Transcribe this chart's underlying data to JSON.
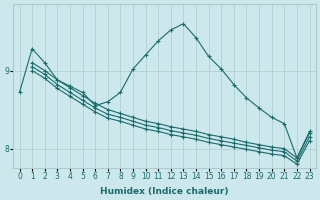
{
  "xlabel": "Humidex (Indice chaleur)",
  "bg_color": "#cce8ec",
  "grid_color": "#aacccc",
  "line_color": "#1a6b6b",
  "xlim": [
    -0.5,
    23.5
  ],
  "ylim": [
    7.75,
    9.85
  ],
  "yticks": [
    8,
    9
  ],
  "xticks": [
    0,
    1,
    2,
    3,
    4,
    5,
    6,
    7,
    8,
    9,
    10,
    11,
    12,
    13,
    14,
    15,
    16,
    17,
    18,
    19,
    20,
    21,
    22,
    23
  ],
  "lines": [
    {
      "x": [
        0,
        1,
        2,
        3,
        4,
        5,
        6,
        7,
        8,
        9,
        10,
        11,
        12,
        13,
        14,
        15,
        16,
        17,
        18,
        19,
        20,
        21,
        22,
        23
      ],
      "y": [
        8.72,
        9.28,
        9.1,
        8.88,
        8.8,
        8.72,
        8.55,
        8.6,
        8.72,
        9.02,
        9.2,
        9.38,
        9.52,
        9.6,
        9.42,
        9.18,
        9.02,
        8.82,
        8.65,
        8.52,
        8.4,
        8.32,
        7.88,
        8.22
      ]
    },
    {
      "x": [
        1,
        2,
        3,
        4,
        5,
        6,
        7,
        8,
        9,
        10,
        11,
        12,
        13,
        14,
        15,
        16,
        17,
        18,
        19,
        20,
        21,
        22,
        23
      ],
      "y": [
        9.1,
        9.0,
        8.88,
        8.78,
        8.68,
        8.58,
        8.5,
        8.45,
        8.4,
        8.35,
        8.32,
        8.28,
        8.25,
        8.22,
        8.18,
        8.15,
        8.12,
        8.08,
        8.05,
        8.02,
        8.0,
        7.88,
        8.2
      ]
    },
    {
      "x": [
        1,
        2,
        3,
        4,
        5,
        6,
        7,
        8,
        9,
        10,
        11,
        12,
        13,
        14,
        15,
        16,
        17,
        18,
        19,
        20,
        21,
        22,
        23
      ],
      "y": [
        9.05,
        8.95,
        8.82,
        8.72,
        8.62,
        8.52,
        8.44,
        8.4,
        8.35,
        8.3,
        8.27,
        8.23,
        8.2,
        8.17,
        8.13,
        8.1,
        8.07,
        8.04,
        8.01,
        7.98,
        7.96,
        7.84,
        8.15
      ]
    },
    {
      "x": [
        1,
        2,
        3,
        4,
        5,
        6,
        7,
        8,
        9,
        10,
        11,
        12,
        13,
        14,
        15,
        16,
        17,
        18,
        19,
        20,
        21,
        22,
        23
      ],
      "y": [
        9.0,
        8.9,
        8.77,
        8.67,
        8.57,
        8.47,
        8.39,
        8.35,
        8.3,
        8.25,
        8.22,
        8.18,
        8.15,
        8.12,
        8.08,
        8.05,
        8.02,
        7.99,
        7.96,
        7.93,
        7.91,
        7.8,
        8.1
      ]
    }
  ],
  "marker": "+",
  "markersize": 3.5,
  "linewidth": 0.8,
  "label_fontsize": 6.5,
  "tick_fontsize": 5.5
}
